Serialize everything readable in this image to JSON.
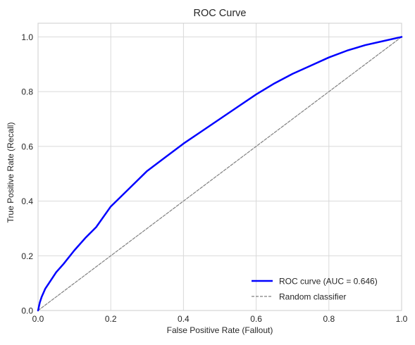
{
  "chart_data": {
    "type": "line",
    "title": "ROC Curve",
    "xlabel": "False Positive Rate (Fallout)",
    "ylabel": "True Positive Rate (Recall)",
    "xlim": [
      0.0,
      1.0
    ],
    "ylim": [
      0.0,
      1.05
    ],
    "xticks": [
      0.0,
      0.2,
      0.4,
      0.6,
      0.8,
      1.0
    ],
    "yticks": [
      0.0,
      0.2,
      0.4,
      0.6,
      0.8,
      1.0
    ],
    "xtick_labels": [
      "0.0",
      "0.2",
      "0.4",
      "0.6",
      "0.8",
      "1.0"
    ],
    "ytick_labels": [
      "0.0",
      "0.2",
      "0.4",
      "0.6",
      "0.8",
      "1.0"
    ],
    "grid": true,
    "legend_position": "lower-right",
    "series": [
      {
        "name": "ROC curve (AUC = 0.646)",
        "color": "#0000ff",
        "style": "solid",
        "x": [
          0.0,
          0.005,
          0.01,
          0.02,
          0.03,
          0.05,
          0.07,
          0.1,
          0.13,
          0.16,
          0.2,
          0.25,
          0.3,
          0.35,
          0.4,
          0.45,
          0.5,
          0.55,
          0.6,
          0.65,
          0.7,
          0.75,
          0.8,
          0.85,
          0.9,
          0.95,
          1.0
        ],
        "y": [
          0.0,
          0.03,
          0.05,
          0.08,
          0.1,
          0.14,
          0.17,
          0.22,
          0.265,
          0.305,
          0.38,
          0.445,
          0.51,
          0.56,
          0.61,
          0.655,
          0.7,
          0.745,
          0.79,
          0.83,
          0.865,
          0.895,
          0.925,
          0.95,
          0.97,
          0.985,
          1.0
        ]
      },
      {
        "name": "Random classifier",
        "color": "#808080",
        "style": "dashed",
        "x": [
          0.0,
          1.0
        ],
        "y": [
          0.0,
          1.0
        ]
      }
    ]
  }
}
